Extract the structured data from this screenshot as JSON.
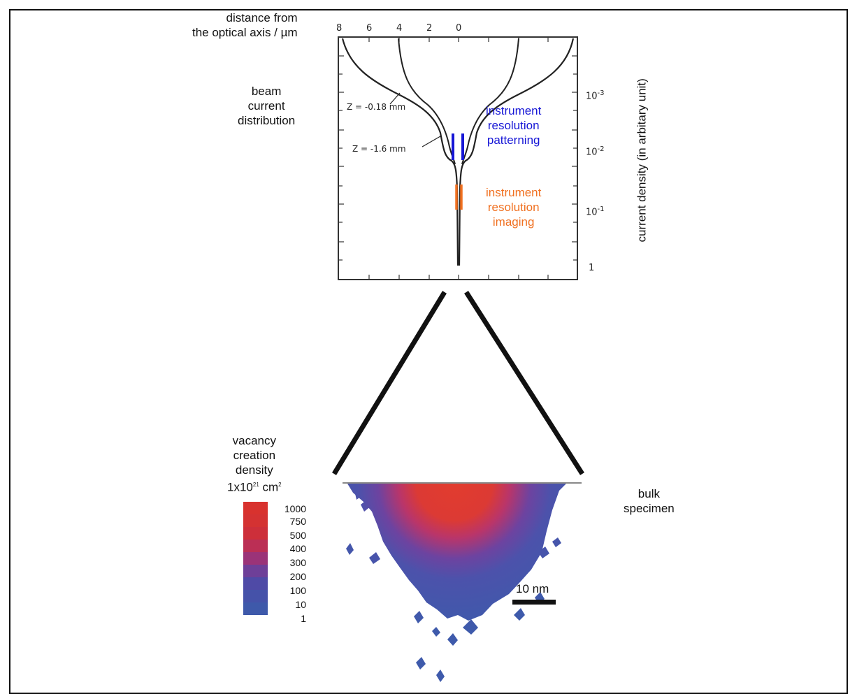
{
  "labels": {
    "distance_axis": [
      "distance from",
      "the optical axis / µm"
    ],
    "beam": [
      "beam",
      "current",
      "distribution"
    ],
    "current_density": "current density (in arbitary unit)",
    "patterning": [
      "instrument",
      "resolution",
      "patterning"
    ],
    "imaging": [
      "instrument",
      "resolution",
      "imaging"
    ],
    "vacancy": [
      "vacancy",
      "creation",
      "density"
    ],
    "vacancy_unit": {
      "base": "1x10",
      "exp": "21",
      "unit": " cm",
      "unit_exp": "2"
    },
    "bulk": [
      "bulk",
      "specimen"
    ],
    "scale": "10 nm"
  },
  "top_axis_ticks": [
    "8",
    "6",
    "4",
    "2",
    "0"
  ],
  "right_axis_ticks": [
    {
      "base": "10",
      "exp": "-3"
    },
    {
      "base": "10",
      "exp": "-2"
    },
    {
      "base": "10",
      "exp": "-1"
    },
    {
      "base": "1",
      "exp": ""
    }
  ],
  "curve_labels": [
    "Z = -0.18 mm",
    "Z = -1.6 mm"
  ],
  "colorbar": {
    "values": [
      "1000",
      "750",
      "500",
      "400",
      "300",
      "200",
      "100",
      "10",
      "1"
    ],
    "colors": [
      "#d8322e",
      "#d43232",
      "#cd2f3a",
      "#bb2f55",
      "#9b3378",
      "#6e3f98",
      "#4f4aa6",
      "#4552a9",
      "#3e59aa"
    ]
  },
  "colors": {
    "patterning": "#1616d6",
    "imaging": "#f07020",
    "line": "#222222"
  }
}
